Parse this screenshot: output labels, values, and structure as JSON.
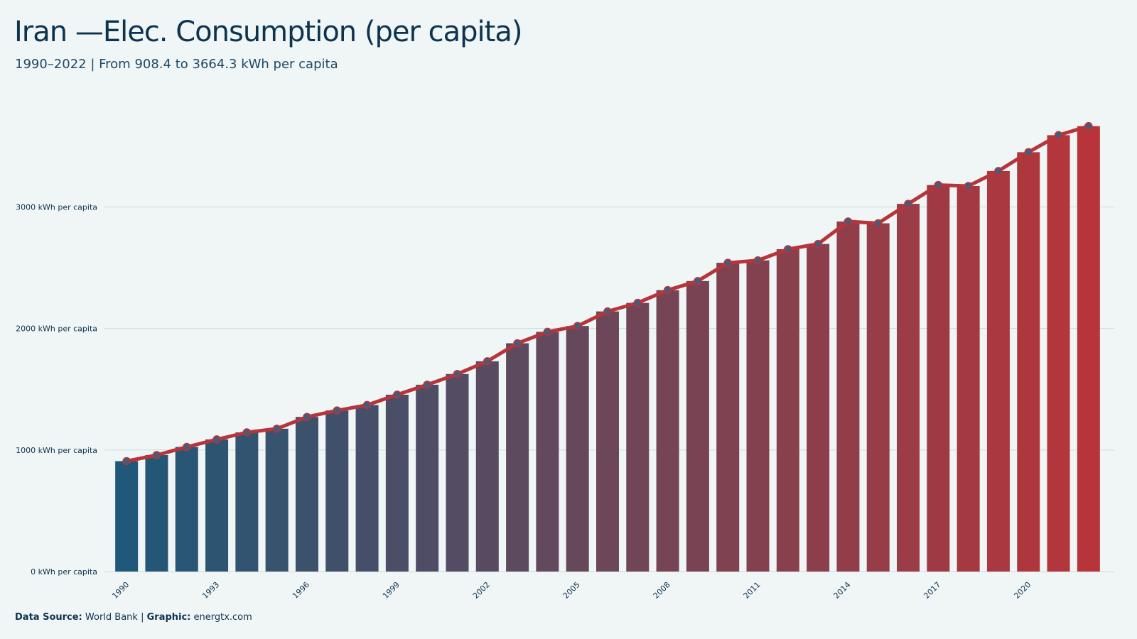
{
  "title": "Iran —Elec. Consumption (per capita)",
  "subtitle": "1990–2022 | From 908.4 to 3664.3 kWh per capita",
  "footer": {
    "source_label": "Data Source:",
    "source_value": " World Bank | ",
    "graphic_label": "Graphic:",
    "graphic_value": " energtx.com"
  },
  "colors": {
    "background": "#f0f5f5",
    "bar_start": "#1f5878",
    "bar_end": "#b7353a",
    "line": "#b7353a",
    "marker_fill": "#4a5a78",
    "gridline": "#c8dede"
  },
  "chart_data": {
    "type": "bar",
    "title": "Iran —Elec. Consumption (per capita)",
    "subtitle": "1990–2022 | From 908.4 to 3664.3 kWh per capita",
    "x_tick_labels": [
      "1990",
      "1993",
      "1996",
      "1999",
      "2002",
      "2005",
      "2008",
      "2011",
      "2014",
      "2017",
      "2020"
    ],
    "y_ticks": [
      {
        "value": 0,
        "label": "0 kWh per capita"
      },
      {
        "value": 1000,
        "label": "1000 kWh per capita"
      },
      {
        "value": 2000,
        "label": "2000 kWh per capita"
      },
      {
        "value": 3000,
        "label": "3000 kWh per capita"
      }
    ],
    "ylim": [
      0,
      3700
    ],
    "grid": true,
    "overlay": "line with markers over bars (same values)",
    "x": [
      1990,
      1991,
      1992,
      1993,
      1994,
      1995,
      1996,
      1997,
      1998,
      1999,
      2000,
      2001,
      2002,
      2003,
      2004,
      2005,
      2006,
      2007,
      2008,
      2009,
      2010,
      2011,
      2012,
      2013,
      2014,
      2015,
      2016,
      2017,
      2018,
      2019,
      2020,
      2021,
      2022
    ],
    "values": [
      908.4,
      958,
      1025,
      1087,
      1145,
      1175,
      1272,
      1325,
      1370,
      1455,
      1537,
      1625,
      1730,
      1878,
      1972,
      2020,
      2140,
      2210,
      2315,
      2390,
      2540,
      2560,
      2652,
      2695,
      2880,
      2865,
      3025,
      3180,
      3172,
      3295,
      3450,
      3590,
      3664.3
    ]
  }
}
